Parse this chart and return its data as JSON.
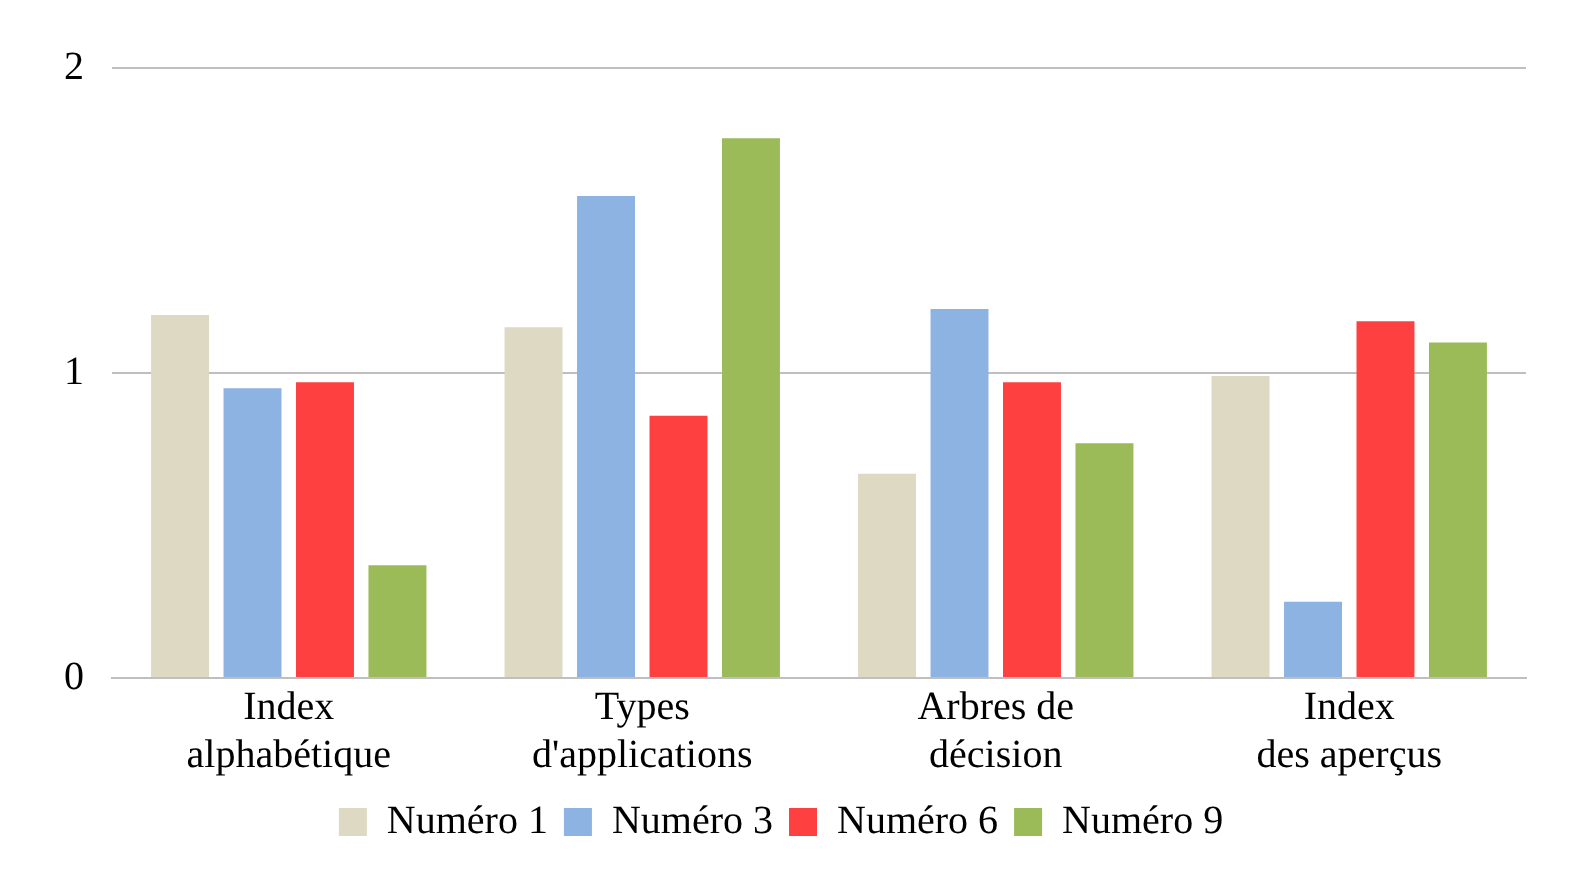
{
  "chart_data": {
    "type": "bar",
    "categories": [
      "Index\nalphabétique",
      "Types\nd'applications",
      "Arbres de\ndécision",
      "Index\ndes aperçus"
    ],
    "series": [
      {
        "name": "Numéro 1",
        "color": "#ddd9c3",
        "values": [
          1.19,
          1.15,
          0.67,
          0.99
        ]
      },
      {
        "name": "Numéro 3",
        "color": "#8db3e2",
        "values": [
          0.95,
          1.58,
          1.21,
          0.25
        ]
      },
      {
        "name": "Numéro 6",
        "color": "#ff4040",
        "values": [
          0.97,
          0.86,
          0.97,
          1.17
        ]
      },
      {
        "name": "Numéro 9",
        "color": "#9bbb59",
        "values": [
          0.37,
          1.77,
          0.77,
          1.1
        ]
      }
    ],
    "ylim": [
      0,
      2
    ],
    "yticks": [
      0,
      1,
      2
    ],
    "grid": "y",
    "legend": "bottom"
  }
}
